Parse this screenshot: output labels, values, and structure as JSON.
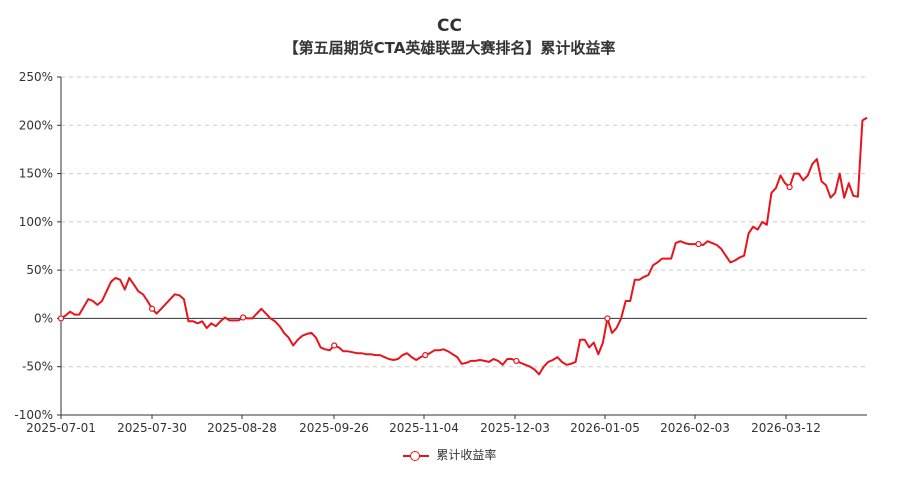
{
  "chart_data": {
    "type": "line",
    "title": "CC",
    "subtitle": "【第五届期货CTA英雄联盟大赛排名】累计收益率",
    "y_ticks": [
      "250%",
      "200%",
      "150%",
      "100%",
      "50%",
      "0%",
      "-50%",
      "-100%"
    ],
    "ylim": [
      -100,
      250
    ],
    "x_ticks": [
      "2025-07-01",
      "2025-07-30",
      "2025-08-28",
      "2025-09-26",
      "2025-11-04",
      "2025-12-03",
      "2026-01-05",
      "2026-02-03",
      "2026-03-12"
    ],
    "grid": true,
    "legend_position": "bottom",
    "series": [
      {
        "name": "累计收益率",
        "color": "#e8141c",
        "values": [
          0,
          3,
          7,
          4,
          4,
          12,
          20,
          18,
          14,
          18,
          28,
          38,
          42,
          40,
          30,
          42,
          35,
          28,
          25,
          18,
          10,
          5,
          10,
          15,
          20,
          25,
          24,
          20,
          -3,
          -3,
          -5,
          -3,
          -10,
          -5,
          -8,
          -3,
          1,
          -2,
          -2,
          -2,
          1,
          0,
          0,
          5,
          10,
          5,
          0,
          -3,
          -8,
          -15,
          -20,
          -28,
          -22,
          -18,
          -16,
          -15,
          -20,
          -30,
          -32,
          -33,
          -28,
          -30,
          -34,
          -34,
          -35,
          -36,
          -36,
          -37,
          -37,
          -38,
          -38,
          -40,
          -42,
          -43,
          -42,
          -38,
          -36,
          -40,
          -43,
          -40,
          -38,
          -36,
          -33,
          -33,
          -32,
          -34,
          -37,
          -40,
          -47,
          -46,
          -44,
          -44,
          -43,
          -44,
          -45,
          -42,
          -44,
          -48,
          -42,
          -42,
          -44,
          -46,
          -48,
          -50,
          -53,
          -58,
          -50,
          -45,
          -43,
          -40,
          -45,
          -48,
          -47,
          -45,
          -22,
          -22,
          -30,
          -25,
          -37,
          -25,
          0,
          -15,
          -10,
          0,
          18,
          18,
          40,
          40,
          43,
          45,
          55,
          58,
          62,
          62,
          62,
          78,
          80,
          78,
          77,
          77,
          77,
          76,
          80,
          78,
          76,
          72,
          65,
          58,
          60,
          63,
          65,
          88,
          95,
          92,
          100,
          97,
          130,
          135,
          148,
          140,
          136,
          150,
          150,
          143,
          148,
          160,
          165,
          142,
          138,
          125,
          130,
          150,
          125,
          140,
          127,
          126,
          205,
          208
        ]
      }
    ]
  }
}
